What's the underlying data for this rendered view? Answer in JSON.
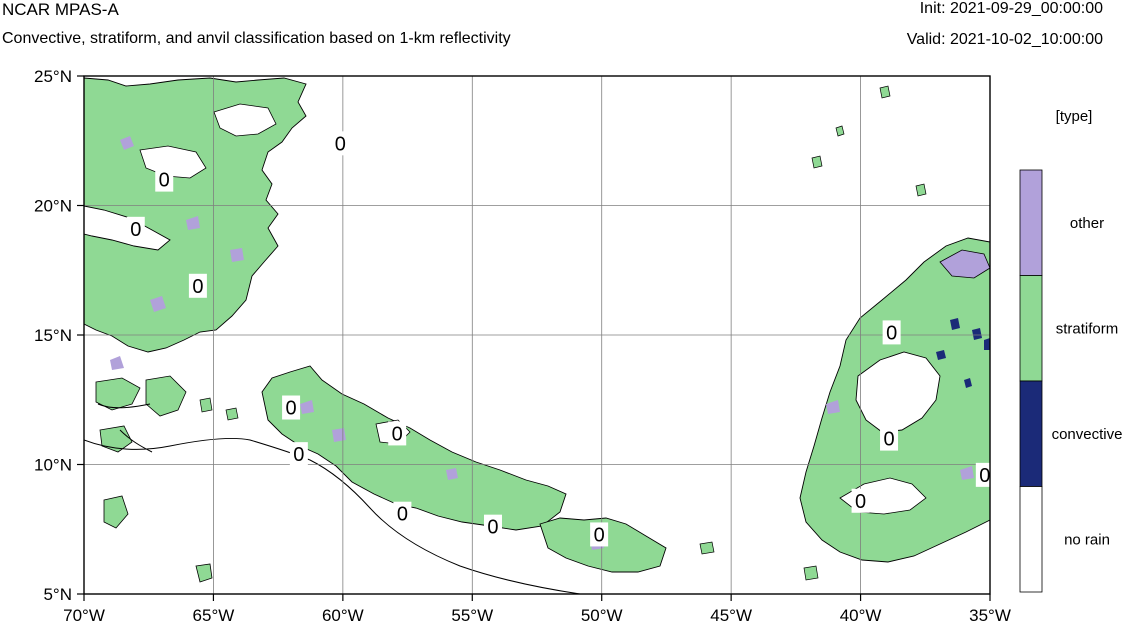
{
  "header": {
    "title": "NCAR MPAS-A",
    "subtitle": "Convective, stratiform, and anvil classification based on 1-km reflectivity",
    "init": "Init: 2021-09-29_00:00:00",
    "valid": "Valid: 2021-10-02_10:00:00"
  },
  "map": {
    "lon_range": [
      -70,
      -35
    ],
    "lat_range": [
      5,
      25
    ],
    "lon_ticks": [
      {
        "value": -70,
        "label": "70°W"
      },
      {
        "value": -65,
        "label": "65°W"
      },
      {
        "value": -60,
        "label": "60°W"
      },
      {
        "value": -55,
        "label": "55°W"
      },
      {
        "value": -50,
        "label": "50°W"
      },
      {
        "value": -45,
        "label": "45°W"
      },
      {
        "value": -40,
        "label": "40°W"
      },
      {
        "value": -35,
        "label": "35°W"
      }
    ],
    "lat_ticks": [
      {
        "value": 25,
        "label": "25°N"
      },
      {
        "value": 20,
        "label": "20°N"
      },
      {
        "value": 15,
        "label": "15°N"
      },
      {
        "value": 10,
        "label": "10°N"
      },
      {
        "value": 5,
        "label": "5°N"
      }
    ],
    "contour_label": "0",
    "contour_label_positions": [
      {
        "lon": -66.9,
        "lat": 21.0
      },
      {
        "lon": -68.0,
        "lat": 19.1
      },
      {
        "lon": -65.6,
        "lat": 16.9
      },
      {
        "lon": -60.1,
        "lat": 22.4
      },
      {
        "lon": -62.0,
        "lat": 12.2
      },
      {
        "lon": -61.7,
        "lat": 10.4
      },
      {
        "lon": -57.9,
        "lat": 11.2
      },
      {
        "lon": -57.7,
        "lat": 8.1
      },
      {
        "lon": -54.2,
        "lat": 7.6
      },
      {
        "lon": -50.1,
        "lat": 7.3
      },
      {
        "lon": -38.8,
        "lat": 15.1
      },
      {
        "lon": -38.9,
        "lat": 11.0
      },
      {
        "lon": -35.2,
        "lat": 9.6
      },
      {
        "lon": -40.0,
        "lat": 8.6
      }
    ],
    "colors": {
      "other": "#b1a1da",
      "stratiform": "#8fd994",
      "convective": "#1b2a78",
      "no_rain": "#ffffff",
      "contour": "#000000",
      "grid": "#7f7f7f"
    }
  },
  "legend": {
    "title": "[type]",
    "items": [
      {
        "label": "other",
        "color": "#b1a1da"
      },
      {
        "label": "stratiform",
        "color": "#8fd994"
      },
      {
        "label": "convective",
        "color": "#1b2a78"
      },
      {
        "label": "no rain",
        "color": "#ffffff"
      }
    ]
  }
}
